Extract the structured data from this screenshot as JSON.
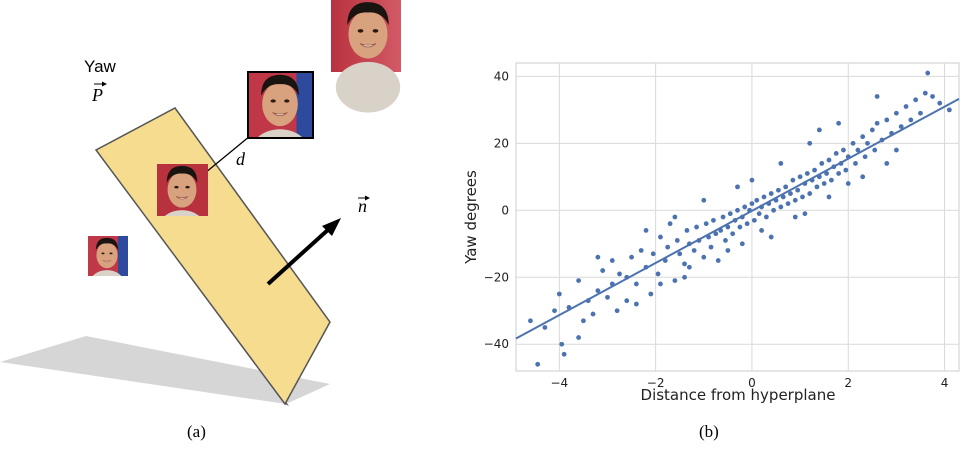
{
  "panel_a": {
    "label_yaw": "Yaw",
    "label_p": "P",
    "label_d": "d",
    "label_n": "n",
    "caption": "(a)",
    "colors": {
      "plane": "#f5dc8f",
      "plane_edge": "#444444",
      "shadow": "#d0d0d0"
    }
  },
  "panel_b": {
    "caption": "(b)"
  },
  "chart_data": {
    "type": "scatter",
    "title": "",
    "xlabel": "Distance from hyperplane",
    "ylabel": "Yaw degrees",
    "xlim": [
      -4.9,
      4.3
    ],
    "ylim": [
      -48,
      44
    ],
    "xticks": [
      -4,
      -2,
      0,
      2,
      4
    ],
    "yticks": [
      -40,
      -20,
      0,
      20,
      40
    ],
    "xtick_labels": [
      "−4",
      "−2",
      "0",
      "2",
      "4"
    ],
    "ytick_labels": [
      "−40",
      "−20",
      "0",
      "20",
      "40"
    ],
    "grid": true,
    "point_color": "#4c72b0",
    "fit_line": {
      "x": [
        -4.9,
        4.3
      ],
      "y": [
        -38.3,
        33.3
      ]
    },
    "points": [
      [
        -4.6,
        -33
      ],
      [
        -4.45,
        -46
      ],
      [
        -4.3,
        -35
      ],
      [
        -4.1,
        -30
      ],
      [
        -4.0,
        -25
      ],
      [
        -3.95,
        -40
      ],
      [
        -3.9,
        -43
      ],
      [
        -3.8,
        -29
      ],
      [
        -3.6,
        -21
      ],
      [
        -3.5,
        -33
      ],
      [
        -3.4,
        -27
      ],
      [
        -3.3,
        -31
      ],
      [
        -3.2,
        -24
      ],
      [
        -3.1,
        -18
      ],
      [
        -3.0,
        -26
      ],
      [
        -2.9,
        -22
      ],
      [
        -2.8,
        -30
      ],
      [
        -2.75,
        -19
      ],
      [
        -2.6,
        -20
      ],
      [
        -2.5,
        -14
      ],
      [
        -2.4,
        -22
      ],
      [
        -2.3,
        -12
      ],
      [
        -2.2,
        -17
      ],
      [
        -2.1,
        -25
      ],
      [
        -2.05,
        -13
      ],
      [
        -1.95,
        -19
      ],
      [
        -1.9,
        -8
      ],
      [
        -1.8,
        -15
      ],
      [
        -1.75,
        -11
      ],
      [
        -1.6,
        -21
      ],
      [
        -1.55,
        -9
      ],
      [
        -1.5,
        -13
      ],
      [
        -1.4,
        -16
      ],
      [
        -1.35,
        -6
      ],
      [
        -1.3,
        -10
      ],
      [
        -1.2,
        -12
      ],
      [
        -1.15,
        -5
      ],
      [
        -1.1,
        -9
      ],
      [
        -1.0,
        -14
      ],
      [
        -0.95,
        -4
      ],
      [
        -0.9,
        -8
      ],
      [
        -0.85,
        -11
      ],
      [
        -0.8,
        -3
      ],
      [
        -0.75,
        -7
      ],
      [
        -0.7,
        -15
      ],
      [
        -0.65,
        -6
      ],
      [
        -0.6,
        -2
      ],
      [
        -0.55,
        -9
      ],
      [
        -0.5,
        -5
      ],
      [
        -0.45,
        -1
      ],
      [
        -0.4,
        -7
      ],
      [
        -0.35,
        -3
      ],
      [
        -0.3,
        0
      ],
      [
        -0.25,
        -5
      ],
      [
        -0.2,
        -2
      ],
      [
        -0.15,
        1
      ],
      [
        -0.1,
        -4
      ],
      [
        -0.05,
        0
      ],
      [
        0.0,
        2
      ],
      [
        0.05,
        -3
      ],
      [
        0.1,
        3
      ],
      [
        0.15,
        -1
      ],
      [
        0.2,
        1
      ],
      [
        0.25,
        4
      ],
      [
        0.3,
        -2
      ],
      [
        0.35,
        2
      ],
      [
        0.4,
        5
      ],
      [
        0.45,
        0
      ],
      [
        0.5,
        3
      ],
      [
        0.55,
        6
      ],
      [
        0.6,
        1
      ],
      [
        0.65,
        4
      ],
      [
        0.7,
        7
      ],
      [
        0.75,
        2
      ],
      [
        0.8,
        5
      ],
      [
        0.85,
        9
      ],
      [
        0.9,
        3
      ],
      [
        0.95,
        6
      ],
      [
        1.0,
        10
      ],
      [
        1.05,
        4
      ],
      [
        1.1,
        8
      ],
      [
        1.15,
        11
      ],
      [
        1.2,
        5
      ],
      [
        1.25,
        9
      ],
      [
        1.3,
        12
      ],
      [
        1.35,
        7
      ],
      [
        1.4,
        10
      ],
      [
        1.45,
        14
      ],
      [
        1.5,
        8
      ],
      [
        1.55,
        11
      ],
      [
        1.6,
        15
      ],
      [
        1.65,
        9
      ],
      [
        1.7,
        13
      ],
      [
        1.75,
        17
      ],
      [
        1.8,
        11
      ],
      [
        1.85,
        14
      ],
      [
        1.9,
        18
      ],
      [
        1.95,
        12
      ],
      [
        2.0,
        16
      ],
      [
        2.1,
        20
      ],
      [
        2.15,
        14
      ],
      [
        2.2,
        18
      ],
      [
        2.3,
        22
      ],
      [
        2.35,
        16
      ],
      [
        2.4,
        20
      ],
      [
        2.5,
        24
      ],
      [
        2.55,
        18
      ],
      [
        2.6,
        26
      ],
      [
        2.7,
        21
      ],
      [
        2.8,
        27
      ],
      [
        2.9,
        23
      ],
      [
        3.0,
        29
      ],
      [
        3.1,
        25
      ],
      [
        3.2,
        31
      ],
      [
        3.3,
        27
      ],
      [
        3.4,
        33
      ],
      [
        3.5,
        29
      ],
      [
        3.6,
        35
      ],
      [
        3.65,
        41
      ],
      [
        3.75,
        34
      ],
      [
        3.9,
        32
      ],
      [
        4.1,
        30
      ],
      [
        -2.6,
        -27
      ],
      [
        -1.9,
        -22
      ],
      [
        -1.3,
        -17
      ],
      [
        -0.5,
        -12
      ],
      [
        0.2,
        -6
      ],
      [
        0.9,
        -2
      ],
      [
        1.6,
        4
      ],
      [
        2.3,
        10
      ],
      [
        3.0,
        18
      ],
      [
        -2.2,
        -6
      ],
      [
        -1.0,
        3
      ],
      [
        0.6,
        14
      ],
      [
        1.2,
        20
      ],
      [
        2.6,
        34
      ],
      [
        -3.2,
        -14
      ],
      [
        -0.3,
        7
      ],
      [
        0.4,
        -8
      ],
      [
        1.8,
        26
      ],
      [
        -1.6,
        -2
      ],
      [
        2.0,
        8
      ],
      [
        -2.4,
        -28
      ],
      [
        -1.4,
        -20
      ],
      [
        -0.2,
        -10
      ],
      [
        1.1,
        -1
      ],
      [
        2.8,
        14
      ],
      [
        -3.6,
        -38
      ],
      [
        -2.9,
        -15
      ],
      [
        -1.7,
        -4
      ],
      [
        0.0,
        9
      ],
      [
        1.4,
        24
      ]
    ]
  }
}
